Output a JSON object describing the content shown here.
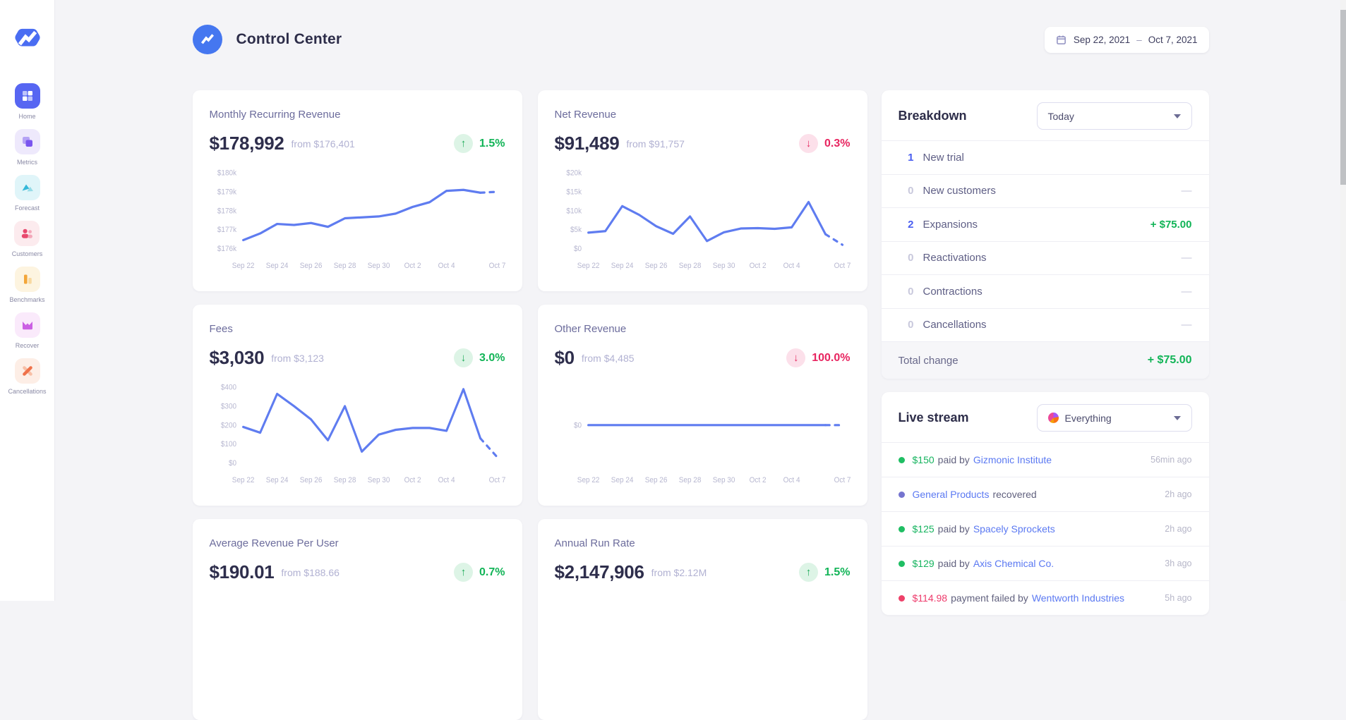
{
  "app": {
    "title": "Control Center",
    "date_start": "Sep 22, 2021",
    "date_separator": "–",
    "date_end": "Oct 7, 2021"
  },
  "sidebar": {
    "items": [
      {
        "id": "home",
        "label": "Home",
        "icon": "home-grid-icon",
        "active": true
      },
      {
        "id": "metrics",
        "label": "Metrics",
        "icon": "metrics-squares-icon",
        "active": false
      },
      {
        "id": "forecast",
        "label": "Forecast",
        "icon": "forecast-triangles-icon",
        "active": false
      },
      {
        "id": "customers",
        "label": "Customers",
        "icon": "customers-people-icon",
        "active": false
      },
      {
        "id": "benchmarks",
        "label": "Benchmarks",
        "icon": "benchmarks-bars-icon",
        "active": false
      },
      {
        "id": "recover",
        "label": "Recover",
        "icon": "recover-envelope-icon",
        "active": false
      },
      {
        "id": "cancellations",
        "label": "Cancellations",
        "icon": "cancellations-x-icon",
        "active": false
      }
    ]
  },
  "cards": [
    {
      "title": "Monthly Recurring Revenue",
      "value": "$178,992",
      "from": "from $176,401",
      "delta": "1.5%",
      "arrow": "up",
      "tone": "green",
      "chart": "mrr"
    },
    {
      "title": "Net Revenue",
      "value": "$91,489",
      "from": "from $91,757",
      "delta": "0.3%",
      "arrow": "down",
      "tone": "red",
      "chart": "net"
    },
    {
      "title": "Fees",
      "value": "$3,030",
      "from": "from $3,123",
      "delta": "3.0%",
      "arrow": "down",
      "tone": "green",
      "chart": "fees"
    },
    {
      "title": "Other Revenue",
      "value": "$0",
      "from": "from $4,485",
      "delta": "100.0%",
      "arrow": "down",
      "tone": "red",
      "chart": "other"
    },
    {
      "title": "Average Revenue Per User",
      "value": "$190.01",
      "from": "from $188.66",
      "delta": "0.7%",
      "arrow": "up",
      "tone": "green",
      "chart": null
    },
    {
      "title": "Annual Run Rate",
      "value": "$2,147,906",
      "from": "from $2.12M",
      "delta": "1.5%",
      "arrow": "up",
      "tone": "green",
      "chart": null
    }
  ],
  "chart_data": [
    {
      "id": "mrr",
      "type": "line",
      "title": "Monthly Recurring Revenue",
      "x_labels": [
        "Sep 22",
        "Sep 24",
        "Sep 26",
        "Sep 28",
        "Sep 30",
        "Oct 2",
        "Oct 4",
        "Oct 7"
      ],
      "label_idx": [
        0,
        2,
        4,
        6,
        8,
        10,
        12,
        15
      ],
      "values": [
        176450,
        176800,
        177300,
        177250,
        177350,
        177150,
        177600,
        177650,
        177700,
        177850,
        178200,
        178450,
        179050,
        179100,
        178950,
        179000
      ],
      "y_ticks": [
        "$176k",
        "$177k",
        "$178k",
        "$179k",
        "$180k"
      ],
      "y_tick_values": [
        176000,
        177000,
        178000,
        179000,
        180000
      ],
      "y_min": 176000,
      "y_max": 180000,
      "dashed_from": 14,
      "grid": false
    },
    {
      "id": "net",
      "type": "line",
      "title": "Net Revenue",
      "x_labels": [
        "Sep 22",
        "Sep 24",
        "Sep 26",
        "Sep 28",
        "Sep 30",
        "Oct 2",
        "Oct 4",
        "Oct 7"
      ],
      "label_idx": [
        0,
        2,
        4,
        6,
        8,
        10,
        12,
        15
      ],
      "values": [
        4200,
        4600,
        11200,
        8900,
        5900,
        3900,
        8500,
        2000,
        4300,
        5300,
        5400,
        5200,
        5600,
        12300,
        3800,
        1000
      ],
      "y_ticks": [
        "$0",
        "$5k",
        "$10k",
        "$15k",
        "$20k"
      ],
      "y_tick_values": [
        0,
        5000,
        10000,
        15000,
        20000
      ],
      "y_min": 0,
      "y_max": 20000,
      "dashed_from": 14,
      "grid": false
    },
    {
      "id": "fees",
      "type": "line",
      "title": "Fees",
      "x_labels": [
        "Sep 22",
        "Sep 24",
        "Sep 26",
        "Sep 28",
        "Sep 30",
        "Oct 2",
        "Oct 4",
        "Oct 7"
      ],
      "label_idx": [
        0,
        2,
        4,
        6,
        8,
        10,
        12,
        15
      ],
      "values": [
        190,
        160,
        365,
        300,
        230,
        120,
        300,
        60,
        150,
        175,
        185,
        185,
        170,
        390,
        130,
        30
      ],
      "y_ticks": [
        "$0",
        "$100",
        "$200",
        "$300",
        "$400"
      ],
      "y_tick_values": [
        0,
        100,
        200,
        300,
        400
      ],
      "y_min": 0,
      "y_max": 400,
      "dashed_from": 14,
      "grid": false
    },
    {
      "id": "other",
      "type": "line",
      "title": "Other Revenue",
      "x_labels": [
        "Sep 22",
        "Sep 24",
        "Sep 26",
        "Sep 28",
        "Sep 30",
        "Oct 2",
        "Oct 4",
        "Oct 7"
      ],
      "label_idx": [
        0,
        2,
        4,
        6,
        8,
        10,
        12,
        15
      ],
      "values": [
        0,
        0,
        0,
        0,
        0,
        0,
        0,
        0,
        0,
        0,
        0,
        0,
        0,
        0,
        0,
        0
      ],
      "y_ticks": [
        "$0"
      ],
      "y_tick_values": [
        0
      ],
      "y_min": -1,
      "y_max": 1,
      "dashed_from": 14,
      "grid": false
    }
  ],
  "breakdown": {
    "title": "Breakdown",
    "filter_label": "Today",
    "rows": [
      {
        "count": "1",
        "label": "New trial",
        "value": "",
        "value_type": "none"
      },
      {
        "count": "0",
        "label": "New customers",
        "value": "—",
        "value_type": "dash"
      },
      {
        "count": "2",
        "label": "Expansions",
        "value": "+ $75.00",
        "value_type": "green"
      },
      {
        "count": "0",
        "label": "Reactivations",
        "value": "—",
        "value_type": "dash"
      },
      {
        "count": "0",
        "label": "Contractions",
        "value": "—",
        "value_type": "dash"
      },
      {
        "count": "0",
        "label": "Cancellations",
        "value": "—",
        "value_type": "dash"
      }
    ],
    "total_label": "Total change",
    "total_value": "+ $75.00"
  },
  "livestream": {
    "title": "Live stream",
    "filter_label": "Everything",
    "items": [
      {
        "dot_color": "#1fbe63",
        "amount": "$150",
        "amount_class": "green",
        "prefix": "paid by",
        "link": "Gizmonic Institute",
        "suffix": "",
        "time": "56min ago"
      },
      {
        "dot_color": "#7574cf",
        "amount": "",
        "amount_class": "",
        "prefix": "",
        "link": "General Products",
        "suffix": "recovered",
        "time": "2h ago"
      },
      {
        "dot_color": "#1fbe63",
        "amount": "$125",
        "amount_class": "green",
        "prefix": "paid by",
        "link": "Spacely Sprockets",
        "suffix": "",
        "time": "2h ago"
      },
      {
        "dot_color": "#1fbe63",
        "amount": "$129",
        "amount_class": "green",
        "prefix": "paid by",
        "link": "Axis Chemical Co.",
        "suffix": "",
        "time": "3h ago"
      },
      {
        "dot_color": "#ee4169",
        "amount": "$114.98",
        "amount_class": "red",
        "prefix": "payment failed by",
        "link": "Wentworth Industries",
        "suffix": "",
        "time": "5h ago"
      }
    ]
  },
  "colors": {
    "accent_blue": "#5f7cf0",
    "positive_green": "#12b457",
    "negative_red": "#e82560",
    "link_blue": "#5b79f2",
    "background": "#f4f4f7"
  }
}
